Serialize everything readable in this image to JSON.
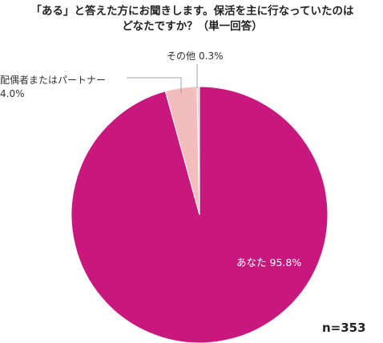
{
  "chart_data": {
    "type": "pie",
    "title": [
      "「ある」と答えた方にお聞きします。保活を主に行なっていたのは",
      "どなたですか？（単一回答）"
    ],
    "categories": [
      "あなた",
      "配偶者またはパートナー",
      "その他"
    ],
    "values": [
      95.8,
      4.0,
      0.3
    ],
    "value_labels": [
      "95.8%",
      "4.0%",
      "0.3%"
    ],
    "colors": [
      "#c8187e",
      "#f3bdbd",
      "#d6d6d6"
    ],
    "note": "n=353"
  }
}
